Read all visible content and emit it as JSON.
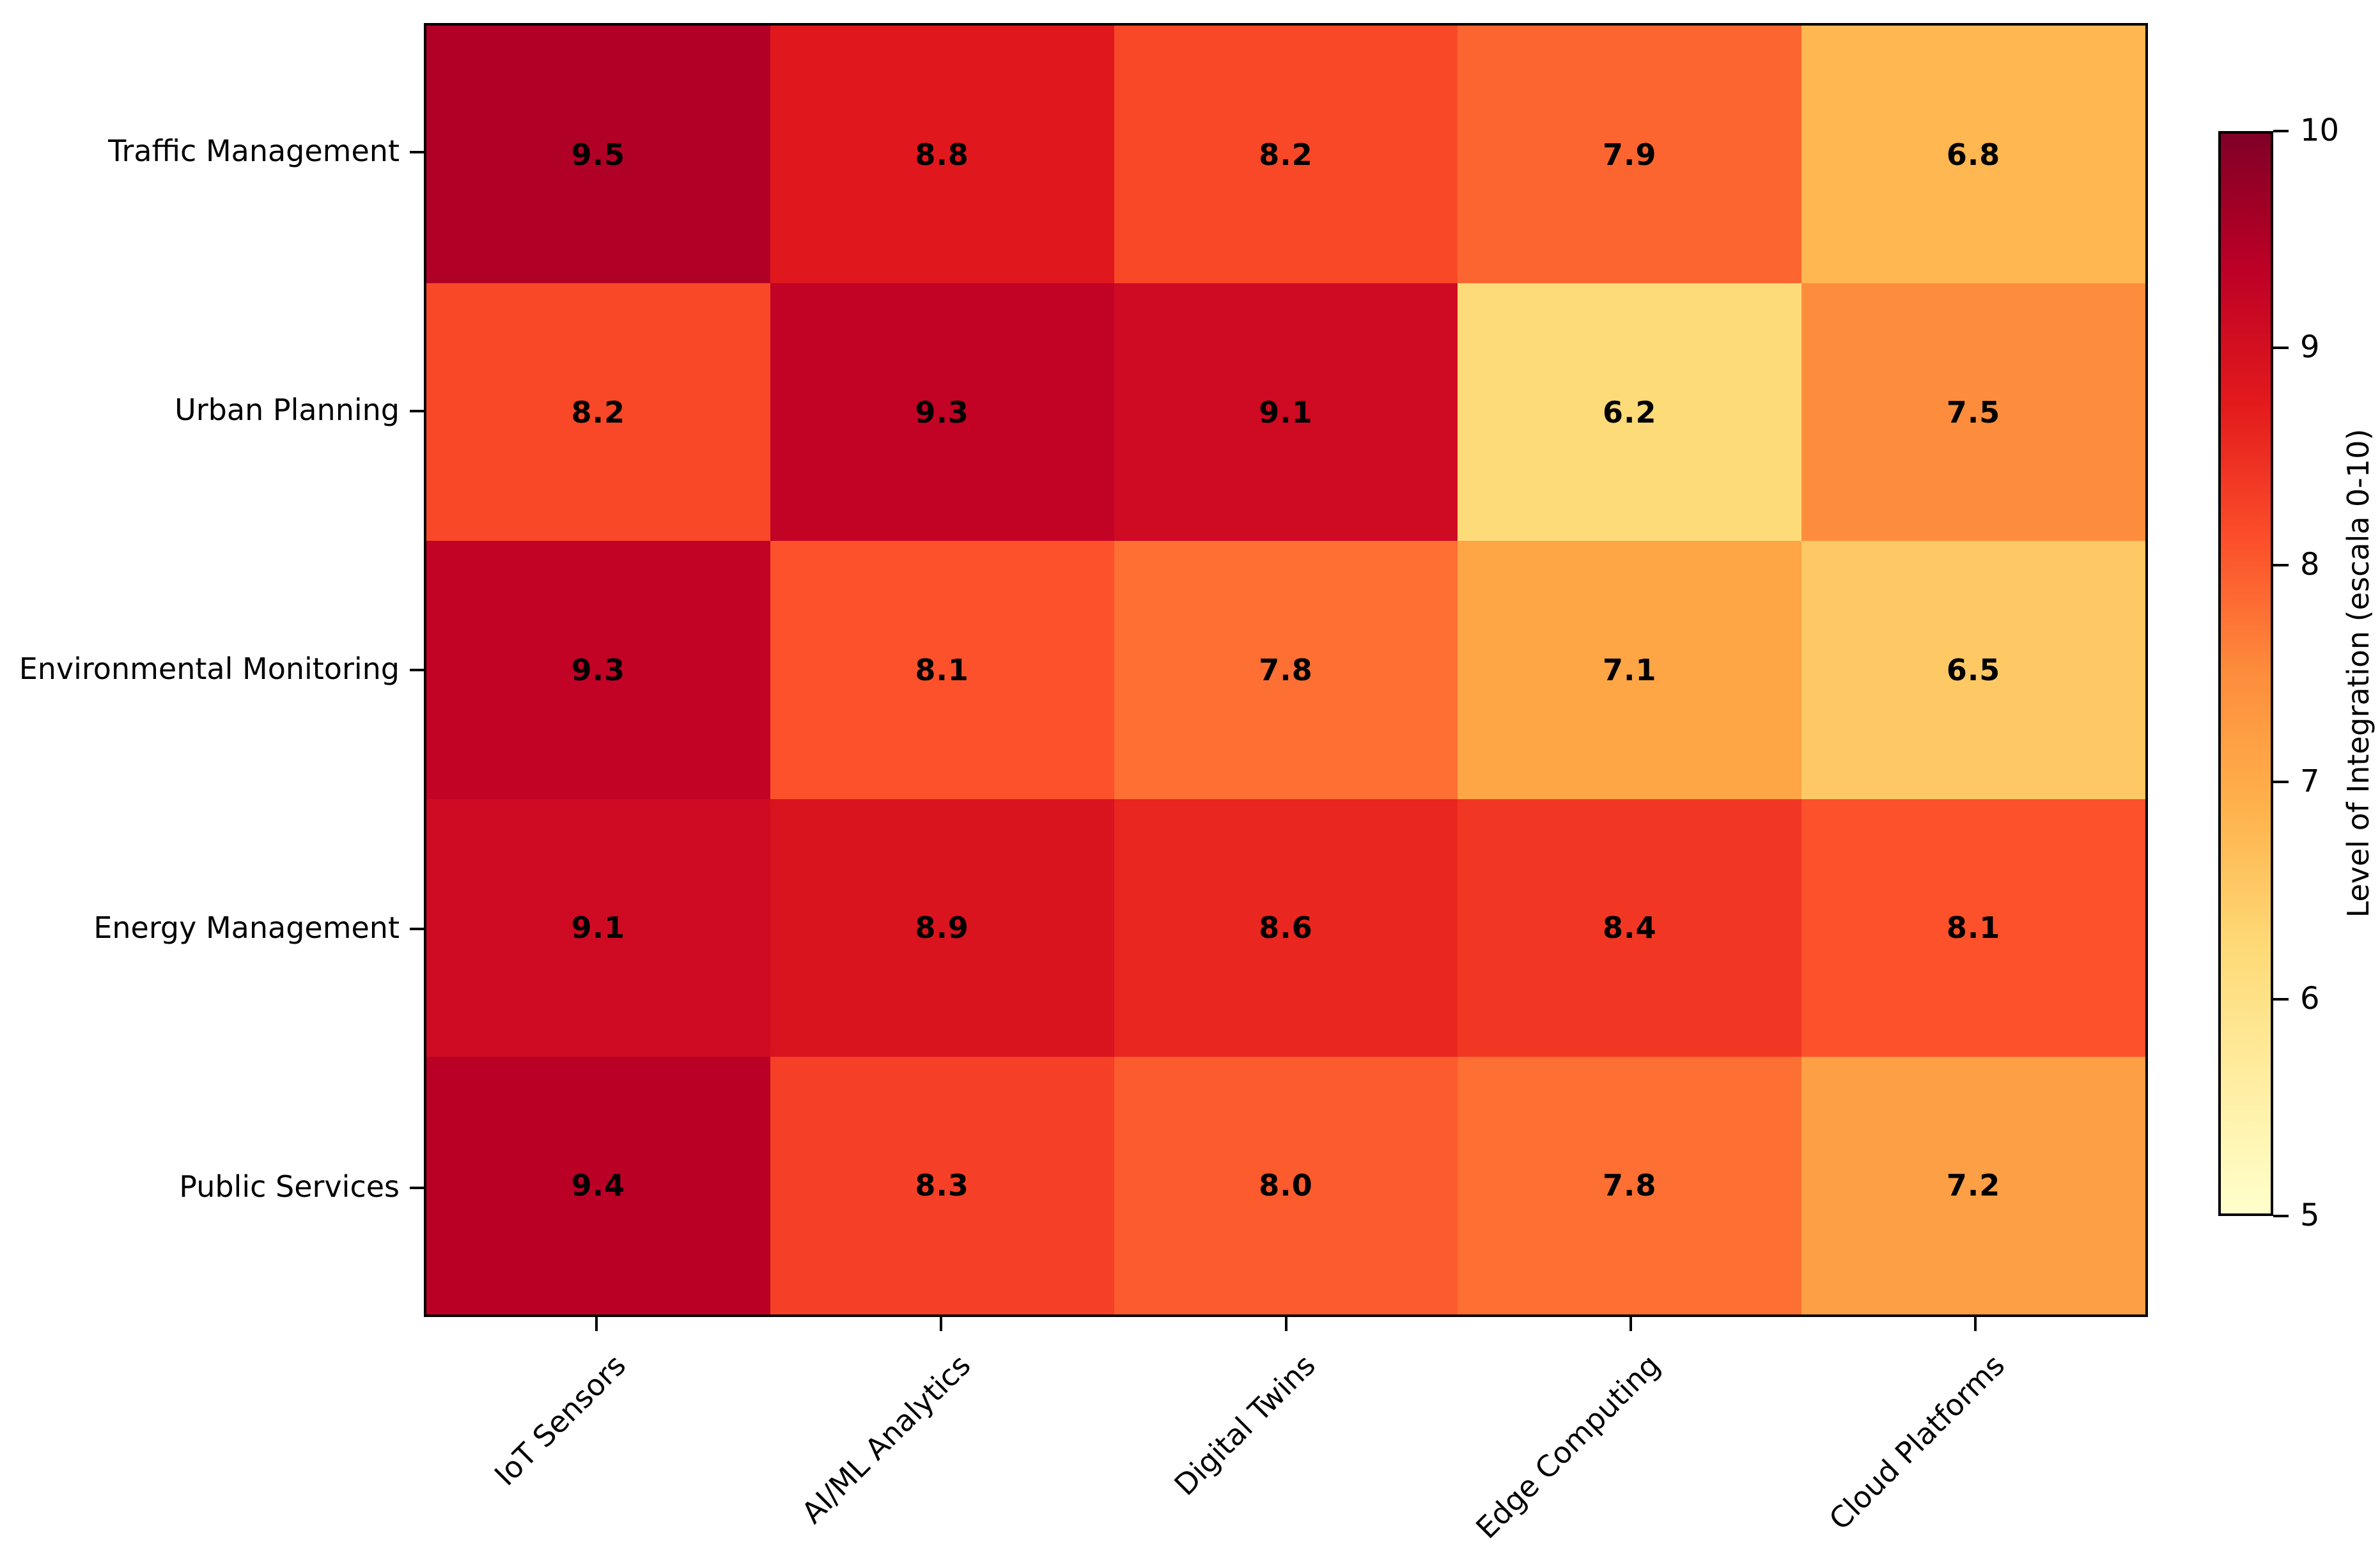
{
  "figure": {
    "background_color": "#ffffff",
    "axis_color": "#000000",
    "cell_text_color": "#000000"
  },
  "chart_data": {
    "type": "heatmap",
    "title": "",
    "rows": [
      "Traffic Management",
      "Urban Planning",
      "Environmental Monitoring",
      "Energy Management",
      "Public Services"
    ],
    "columns": [
      "IoT Sensors",
      "AI/ML Analytics",
      "Digital Twins",
      "Edge Computing",
      "Cloud Platforms"
    ],
    "values": [
      [
        9.5,
        8.8,
        8.2,
        7.9,
        6.8
      ],
      [
        8.2,
        9.3,
        9.1,
        6.2,
        7.5
      ],
      [
        9.3,
        8.1,
        7.8,
        7.1,
        6.5
      ],
      [
        9.1,
        8.9,
        8.6,
        8.4,
        8.1
      ],
      [
        9.4,
        8.3,
        8.0,
        7.8,
        7.2
      ]
    ],
    "value_decimals": 1,
    "grid": false,
    "colorbar": {
      "label": "Level of Integration (escala 0-10)",
      "ticks": [
        10,
        9,
        8,
        7,
        6,
        5
      ],
      "vmin": 5,
      "vmax": 10,
      "colormap": "YlOrRd",
      "colormap_stops": [
        {
          "pos": 0.0,
          "color": "#ffffcc"
        },
        {
          "pos": 0.125,
          "color": "#ffeda0"
        },
        {
          "pos": 0.25,
          "color": "#fed976"
        },
        {
          "pos": 0.375,
          "color": "#feb24c"
        },
        {
          "pos": 0.5,
          "color": "#fd8d3c"
        },
        {
          "pos": 0.625,
          "color": "#fc4e2a"
        },
        {
          "pos": 0.75,
          "color": "#e31a1c"
        },
        {
          "pos": 0.875,
          "color": "#bd0026"
        },
        {
          "pos": 1.0,
          "color": "#800026"
        }
      ]
    }
  }
}
